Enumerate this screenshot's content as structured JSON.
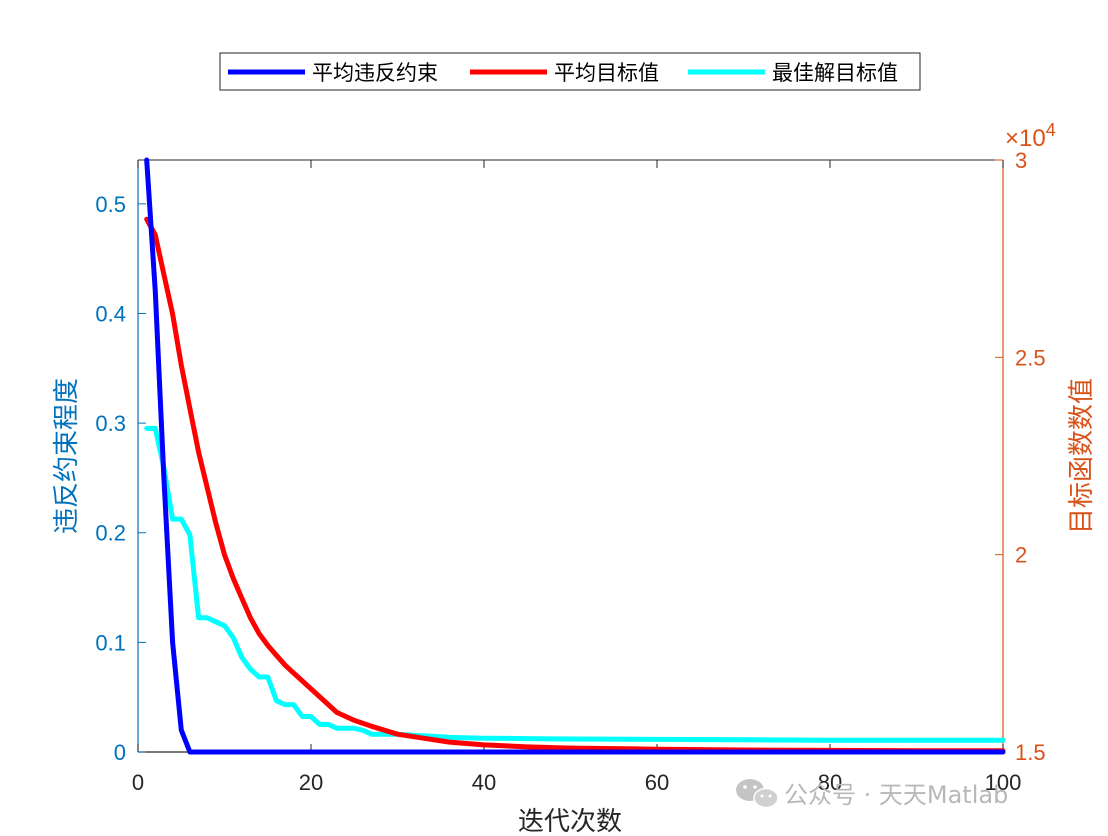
{
  "colors": {
    "left_axis": "#0072BD",
    "right_axis": "#D95319",
    "avg_violation": "#0000FF",
    "avg_objective": "#FF0000",
    "best_objective": "#00FFFF",
    "axis_x": "#262626"
  },
  "watermark": {
    "icon": "wechat-icon",
    "text": "公众号 · 天天Matlab"
  },
  "chart_data": {
    "type": "line",
    "xlabel": "迭代次数",
    "ylabel_left": "违反约束程度",
    "ylabel_right": "目标函数数值",
    "xlim": [
      0,
      100
    ],
    "ylim_left": [
      0,
      0.54
    ],
    "ylim_right": [
      15000,
      30000
    ],
    "right_exponent_base": "×10",
    "right_exponent_power": "4",
    "x_ticks": [
      0,
      20,
      40,
      60,
      80,
      100
    ],
    "y_left_ticks": [
      0,
      0.1,
      0.2,
      0.3,
      0.4,
      0.5
    ],
    "y_right_ticks_scaled": [
      1.5,
      2,
      2.5,
      3
    ],
    "grid": false,
    "legend_position": "top",
    "series": [
      {
        "name": "平均违反约束",
        "axis": "left",
        "x": [
          1,
          2,
          3,
          4,
          5,
          6,
          7,
          100
        ],
        "y": [
          0.54,
          0.42,
          0.25,
          0.1,
          0.02,
          0,
          0,
          0
        ]
      },
      {
        "name": "平均目标值",
        "axis": "right",
        "x": [
          1,
          2,
          3,
          4,
          5,
          6,
          7,
          8,
          9,
          10,
          11,
          12,
          13,
          14,
          15,
          16,
          17,
          18,
          19,
          20,
          22,
          23,
          25,
          27,
          30,
          33,
          36,
          40,
          45,
          50,
          60,
          70,
          80,
          90,
          100
        ],
        "y": [
          28500,
          28100,
          27100,
          26100,
          24800,
          23700,
          22600,
          21700,
          20800,
          20000,
          19400,
          18900,
          18400,
          18000,
          17700,
          17450,
          17200,
          17000,
          16800,
          16600,
          16200,
          16000,
          15800,
          15650,
          15450,
          15350,
          15250,
          15180,
          15130,
          15100,
          15070,
          15050,
          15040,
          15030,
          15030
        ]
      },
      {
        "name": "最佳解目标值",
        "axis": "right",
        "x": [
          1,
          2,
          3,
          4,
          5,
          6,
          7,
          8,
          9,
          10,
          11,
          12,
          13,
          14,
          15,
          16,
          17,
          18,
          19,
          20,
          21,
          22,
          23,
          25,
          26,
          27,
          28,
          30,
          32,
          34,
          36,
          40,
          45,
          50,
          60,
          70,
          80,
          90,
          100
        ],
        "y": [
          23200,
          23200,
          22200,
          20900,
          20900,
          20500,
          18400,
          18400,
          18300,
          18200,
          17900,
          17400,
          17100,
          16900,
          16900,
          16300,
          16200,
          16200,
          15900,
          15900,
          15700,
          15700,
          15600,
          15600,
          15550,
          15450,
          15450,
          15450,
          15420,
          15400,
          15370,
          15350,
          15340,
          15330,
          15320,
          15310,
          15300,
          15300,
          15300
        ]
      }
    ]
  }
}
